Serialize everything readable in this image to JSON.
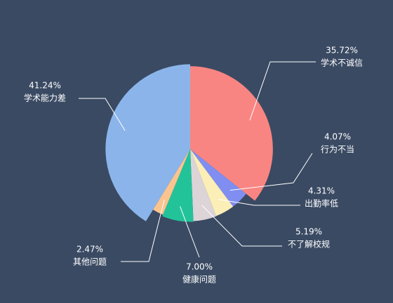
{
  "chart_data": {
    "type": "pie",
    "categories": [
      "学术不诚信",
      "行为不当",
      "出勤率低",
      "不了解校规",
      "健康问题",
      "其他问题",
      "学术能力差"
    ],
    "values": [
      35.72,
      4.07,
      4.31,
      5.19,
      7.0,
      2.47,
      41.24
    ],
    "value_labels": [
      "35.72%",
      "4.07%",
      "4.31%",
      "5.19%",
      "7.00%",
      "2.47%",
      "41.24%"
    ],
    "colors": [
      "#f98582",
      "#7f8ef0",
      "#fbeeb6",
      "#ddd4d8",
      "#23c39a",
      "#fbc48f",
      "#8bb5ea"
    ]
  }
}
